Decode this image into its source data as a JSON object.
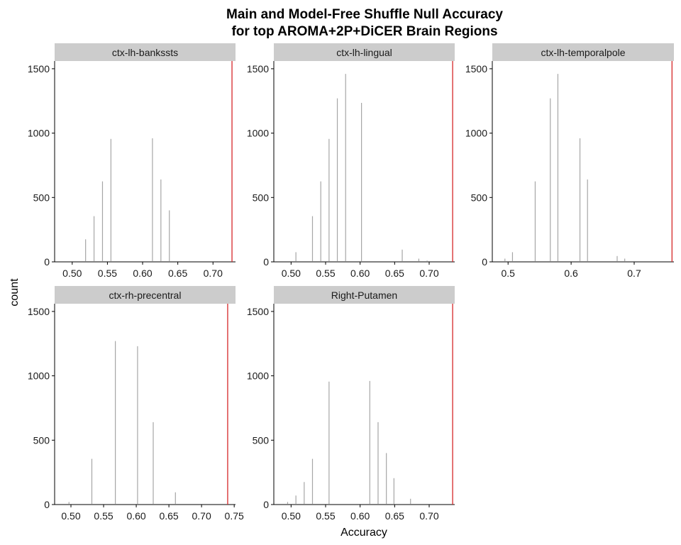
{
  "chart_data": {
    "type": "histogram-facets",
    "title_line1": "Main and Model-Free Shuffle Null Accuracy",
    "title_line2": "for top AROMA+2P+DiCER Brain Regions",
    "xlabel": "Accuracy",
    "ylabel": "count",
    "ylim": [
      0,
      1560
    ],
    "yticks": [
      0,
      500,
      1000,
      1500
    ],
    "colors": {
      "bars": "#a6a6a6",
      "main_line": "#d62728",
      "strip": "#cccccc",
      "axis": "#000000"
    },
    "panels": [
      {
        "name": "ctx-lh-bankssts",
        "xlim": [
          0.475,
          0.732
        ],
        "xticks": [
          0.5,
          0.55,
          0.6,
          0.65,
          0.7
        ],
        "xtick_labels": [
          "0.50",
          "0.55",
          "0.60",
          "0.65",
          "0.70"
        ],
        "main_accuracy": 0.727,
        "bars": [
          {
            "x": 0.519,
            "count": 175
          },
          {
            "x": 0.531,
            "count": 355
          },
          {
            "x": 0.543,
            "count": 625
          },
          {
            "x": 0.555,
            "count": 955
          },
          {
            "x": 0.614,
            "count": 960
          },
          {
            "x": 0.626,
            "count": 640
          },
          {
            "x": 0.638,
            "count": 400
          },
          {
            "x": 0.706,
            "count": 5
          }
        ]
      },
      {
        "name": "ctx-lh-lingual",
        "xlim": [
          0.475,
          0.737
        ],
        "xticks": [
          0.5,
          0.55,
          0.6,
          0.65,
          0.7
        ],
        "xtick_labels": [
          "0.50",
          "0.55",
          "0.60",
          "0.65",
          "0.70"
        ],
        "main_accuracy": 0.734,
        "bars": [
          {
            "x": 0.507,
            "count": 75
          },
          {
            "x": 0.531,
            "count": 355
          },
          {
            "x": 0.543,
            "count": 625
          },
          {
            "x": 0.555,
            "count": 955
          },
          {
            "x": 0.567,
            "count": 1270
          },
          {
            "x": 0.579,
            "count": 1460
          },
          {
            "x": 0.602,
            "count": 1235
          },
          {
            "x": 0.661,
            "count": 95
          },
          {
            "x": 0.685,
            "count": 25
          },
          {
            "x": 0.697,
            "count": 10
          }
        ]
      },
      {
        "name": "ctx-lh-temporalpole",
        "xlim": [
          0.475,
          0.763
        ],
        "xticks": [
          0.5,
          0.6,
          0.7
        ],
        "xtick_labels": [
          "0.5",
          "0.6",
          "0.7"
        ],
        "main_accuracy": 0.76,
        "bars": [
          {
            "x": 0.495,
            "count": 25
          },
          {
            "x": 0.507,
            "count": 75
          },
          {
            "x": 0.543,
            "count": 625
          },
          {
            "x": 0.567,
            "count": 1270
          },
          {
            "x": 0.579,
            "count": 1460
          },
          {
            "x": 0.614,
            "count": 960
          },
          {
            "x": 0.626,
            "count": 640
          },
          {
            "x": 0.673,
            "count": 45
          },
          {
            "x": 0.685,
            "count": 25
          }
        ]
      },
      {
        "name": "ctx-rh-precentral",
        "xlim": [
          0.475,
          0.752
        ],
        "xticks": [
          0.5,
          0.55,
          0.6,
          0.65,
          0.7,
          0.75
        ],
        "xtick_labels": [
          "0.50",
          "0.55",
          "0.60",
          "0.65",
          "0.70",
          "0.75"
        ],
        "main_accuracy": 0.74,
        "bars": [
          {
            "x": 0.497,
            "count": 20
          },
          {
            "x": 0.532,
            "count": 355
          },
          {
            "x": 0.568,
            "count": 1270
          },
          {
            "x": 0.602,
            "count": 1230
          },
          {
            "x": 0.626,
            "count": 640
          },
          {
            "x": 0.66,
            "count": 95
          }
        ]
      },
      {
        "name": "Right-Putamen",
        "xlim": [
          0.475,
          0.737
        ],
        "xticks": [
          0.5,
          0.55,
          0.6,
          0.65,
          0.7
        ],
        "xtick_labels": [
          "0.50",
          "0.55",
          "0.60",
          "0.65",
          "0.70"
        ],
        "main_accuracy": 0.734,
        "bars": [
          {
            "x": 0.495,
            "count": 20
          },
          {
            "x": 0.507,
            "count": 70
          },
          {
            "x": 0.519,
            "count": 175
          },
          {
            "x": 0.531,
            "count": 355
          },
          {
            "x": 0.555,
            "count": 955
          },
          {
            "x": 0.614,
            "count": 960
          },
          {
            "x": 0.626,
            "count": 640
          },
          {
            "x": 0.638,
            "count": 400
          },
          {
            "x": 0.649,
            "count": 205
          },
          {
            "x": 0.673,
            "count": 45
          }
        ]
      }
    ]
  }
}
